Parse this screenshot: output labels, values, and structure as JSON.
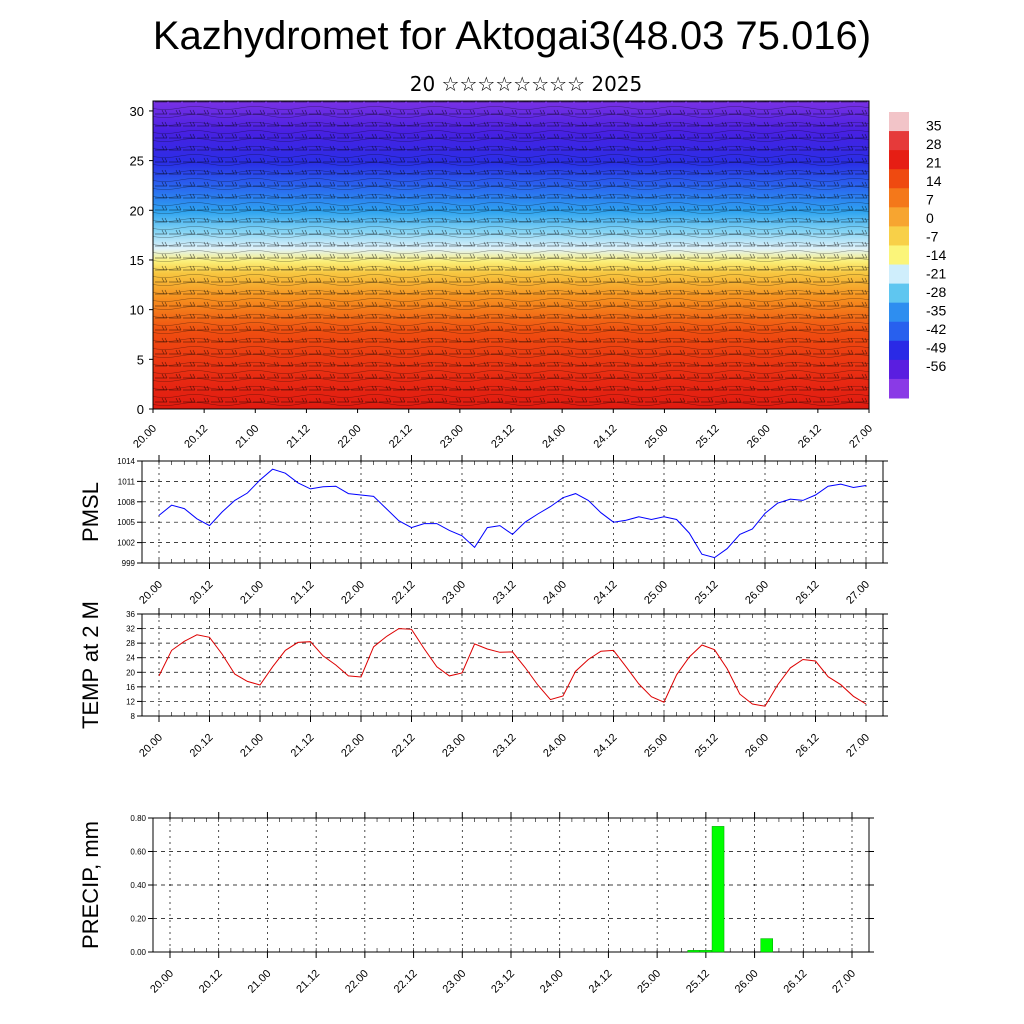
{
  "header": {
    "title": "Kazhydromet for Aktogai3(48.03 75.016)",
    "subtitle": "20 ☆☆☆☆☆☆☆☆ 2025"
  },
  "chart_data": [
    {
      "type": "heatmap",
      "name": "cross-section",
      "x_ticks": [
        "20.00",
        "20.12",
        "21.00",
        "21.12",
        "22.00",
        "22.12",
        "23.00",
        "23.12",
        "24.00",
        "24.12",
        "25.00",
        "25.12",
        "26.00",
        "26.12",
        "27.00"
      ],
      "ylim": [
        0,
        31
      ],
      "y_ticks": [
        0,
        5,
        10,
        15,
        20,
        25,
        30
      ],
      "colorbar": {
        "labels": [
          "35",
          "28",
          "21",
          "14",
          "7",
          "0",
          "-7",
          "-14",
          "-21",
          "-28",
          "-35",
          "-42",
          "-49",
          "-56"
        ],
        "colors": [
          "#f2c4c8",
          "#e63a3a",
          "#e61e14",
          "#ef4a10",
          "#f4781a",
          "#f7a530",
          "#f8d048",
          "#fbf57a",
          "#cfeefc",
          "#5fc6f0",
          "#2e8ef0",
          "#2860ee",
          "#2a2ae6",
          "#5a1ee0",
          "#8a3ae6"
        ]
      },
      "grid": false
    },
    {
      "type": "line",
      "ylabel": "PMSL",
      "color": "#0000ff",
      "ylim": [
        999,
        1014
      ],
      "y_ticks": [
        999,
        1002,
        1005,
        1008,
        1011,
        1014
      ],
      "x_ticks": [
        "20.00",
        "20.12",
        "21.00",
        "21.12",
        "22.00",
        "22.12",
        "23.00",
        "23.12",
        "24.00",
        "24.12",
        "25.00",
        "25.12",
        "26.00",
        "26.12",
        "27.00"
      ],
      "hours": [
        0,
        3,
        6,
        9,
        12,
        15,
        18,
        21,
        24,
        27,
        30,
        33,
        36,
        39,
        42,
        45,
        48,
        51,
        54,
        57,
        60,
        63,
        66,
        69,
        72,
        75,
        78,
        81,
        84,
        87,
        90,
        93,
        96,
        99,
        102,
        105,
        108,
        111,
        114,
        117,
        120,
        123,
        126,
        129,
        132,
        135,
        138,
        141,
        144,
        147,
        150,
        153,
        156,
        159,
        162,
        165,
        168
      ],
      "values": [
        1006,
        1007.5,
        1007,
        1005.5,
        1004.5,
        1006.5,
        1008.2,
        1009.3,
        1011.2,
        1012.8,
        1012.2,
        1010.8,
        1009.9,
        1010.2,
        1010.3,
        1009.2,
        1009,
        1008.8,
        1007,
        1005.2,
        1004.2,
        1004.8,
        1004.8,
        1003.8,
        1003,
        1001.3,
        1004.2,
        1004.5,
        1003.2,
        1005,
        1006.2,
        1007.3,
        1008.6,
        1009.2,
        1008.2,
        1006.4,
        1005,
        1005.3,
        1005.8,
        1005.4,
        1005.8,
        1005.4,
        1003.4,
        1000.3,
        999.8,
        1001.1,
        1003.2,
        1004,
        1006.3,
        1007.8,
        1008.4,
        1008.2,
        1009,
        1010.3,
        1010.6,
        1010.1,
        1010.4
      ],
      "grid": true
    },
    {
      "type": "line",
      "ylabel": "TEMP at 2 M",
      "color": "#dd0000",
      "ylim": [
        8,
        36
      ],
      "y_ticks": [
        8,
        12,
        16,
        20,
        24,
        28,
        32,
        36
      ],
      "x_ticks": [
        "20.00",
        "20.12",
        "21.00",
        "21.12",
        "22.00",
        "22.12",
        "23.00",
        "23.12",
        "24.00",
        "24.12",
        "25.00",
        "25.12",
        "26.00",
        "26.12",
        "27.00"
      ],
      "hours": [
        0,
        3,
        6,
        9,
        12,
        15,
        18,
        21,
        24,
        27,
        30,
        33,
        36,
        39,
        42,
        45,
        48,
        51,
        54,
        57,
        60,
        63,
        66,
        69,
        72,
        75,
        78,
        81,
        84,
        87,
        90,
        93,
        96,
        99,
        102,
        105,
        108,
        111,
        114,
        117,
        120,
        123,
        126,
        129,
        132,
        135,
        138,
        141,
        144,
        147,
        150,
        153,
        156,
        159,
        162,
        165,
        168
      ],
      "values": [
        19,
        26,
        28.5,
        30.3,
        29.6,
        25,
        19.5,
        17.5,
        16.5,
        21.5,
        26,
        28.2,
        28.4,
        24.5,
        22,
        19,
        18.7,
        27,
        29.8,
        32,
        31.8,
        26.5,
        21.5,
        19,
        19.8,
        27.8,
        26.4,
        25.5,
        25.6,
        21.3,
        16.5,
        12.5,
        13.5,
        20.3,
        23.5,
        25.8,
        26,
        21.5,
        16.8,
        13.3,
        11.8,
        19.3,
        24.2,
        27.5,
        26.2,
        21,
        14,
        11.3,
        10.7,
        16.5,
        21.2,
        23.5,
        23.1,
        18.8,
        16.6,
        13.4,
        11.3
      ],
      "grid": true
    },
    {
      "type": "bar",
      "ylabel": "PRECIP, mm",
      "color": "#00ff00",
      "ylim": [
        0,
        0.8
      ],
      "y_ticks": [
        "0.00",
        "0.20",
        "0.40",
        "0.60",
        "0.80"
      ],
      "x_ticks": [
        "20.00",
        "20.12",
        "21.00",
        "21.12",
        "22.00",
        "22.12",
        "23.00",
        "23.12",
        "24.00",
        "24.12",
        "25.00",
        "25.12",
        "26.00",
        "26.12",
        "27.00"
      ],
      "bars": [
        {
          "hour": 129,
          "value": 0.01
        },
        {
          "hour": 132,
          "value": 0.01
        },
        {
          "hour": 135,
          "value": 0.75
        },
        {
          "hour": 147,
          "value": 0.08
        }
      ],
      "grid": true
    }
  ]
}
